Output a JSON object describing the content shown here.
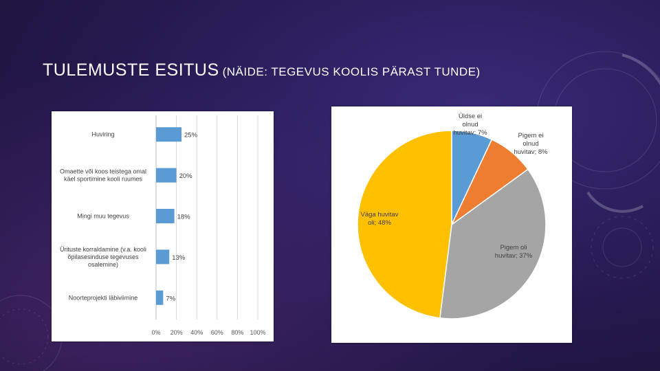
{
  "slide": {
    "title_main": "TULEMUSTE ESITUS",
    "title_sub": "(NÄIDE: TEGEVUS KOOLIS PÄRAST TUNDE)"
  },
  "colors": {
    "bar": "#5b9bd5",
    "pie": [
      "#5b9bd5",
      "#ed7d31",
      "#a5a5a5",
      "#ffc000"
    ]
  },
  "chart_data": [
    {
      "type": "bar",
      "orientation": "horizontal",
      "categories": [
        [
          "Huviring"
        ],
        [
          "Omaette või koos teistega omal",
          "käel sportimine kooli ruumes"
        ],
        [
          "Mingi muu tegevus"
        ],
        [
          "Ürituste korraldamine (v.a. kooli",
          "õpilasesinduse tegevuses",
          "osalemine)"
        ],
        [
          "Noorteprojekti läbiviimine"
        ]
      ],
      "values": [
        25,
        20,
        18,
        13,
        7
      ],
      "value_labels": [
        "25%",
        "20%",
        "18%",
        "13%",
        "7%"
      ],
      "xlim": [
        0,
        100
      ],
      "xticks": [
        "0%",
        "20%",
        "40%",
        "60%",
        "80%",
        "100%"
      ],
      "grid": true
    },
    {
      "type": "pie",
      "slices": [
        {
          "label": [
            "Üldse ei",
            "olnud",
            "huvitav; 7%"
          ],
          "value": 7
        },
        {
          "label": [
            "Pigem ei",
            "olnud",
            "huvitav; 8%"
          ],
          "value": 8
        },
        {
          "label": [
            "Pigem oli",
            "huvitav; 37%"
          ],
          "value": 37
        },
        {
          "label": [
            "Väga huvitav",
            "oli; 48%"
          ],
          "value": 48
        }
      ]
    }
  ]
}
